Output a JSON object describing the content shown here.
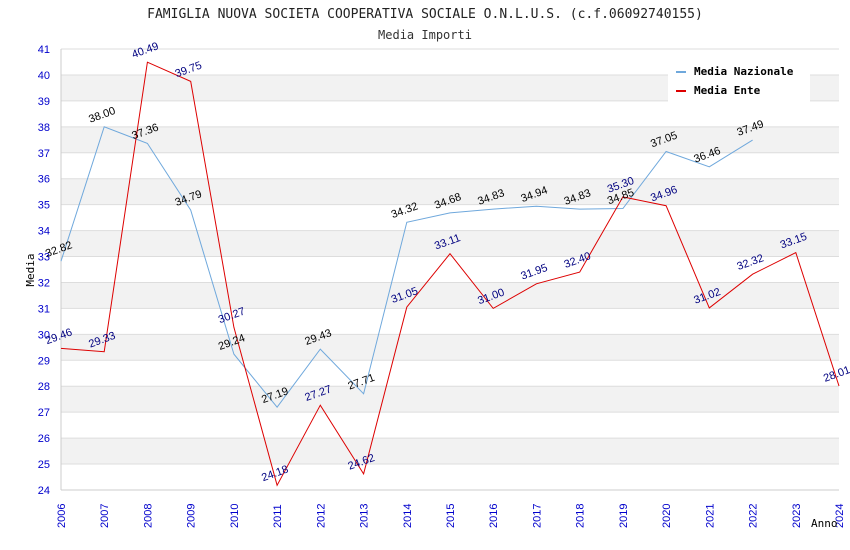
{
  "chart_data": {
    "type": "line",
    "title": "FAMIGLIA NUOVA SOCIETA COOPERATIVA SOCIALE O.N.L.U.S. (c.f.06092740155)",
    "subtitle": "Media Importi",
    "xlabel": "Anno",
    "ylabel": "Media",
    "ylim": [
      24,
      41
    ],
    "y_ticks": [
      "24",
      "25",
      "26",
      "27",
      "28",
      "29",
      "30",
      "31",
      "32",
      "33",
      "34",
      "35",
      "36",
      "37",
      "38",
      "39",
      "40",
      "41"
    ],
    "categories": [
      "2006",
      "2007",
      "2008",
      "2009",
      "2010",
      "2011",
      "2012",
      "2013",
      "2014",
      "2015",
      "2016",
      "2017",
      "2018",
      "2019",
      "2020",
      "2021",
      "2022",
      "2023",
      "2024"
    ],
    "grid": true,
    "legend_position": "top-right",
    "series": [
      {
        "name": "Media Nazionale",
        "color": "#6fa8dc",
        "label_color": "#000000",
        "values": [
          32.82,
          38.0,
          37.36,
          34.79,
          29.24,
          27.19,
          29.43,
          27.71,
          34.32,
          34.68,
          34.83,
          34.94,
          34.83,
          34.85,
          37.05,
          36.46,
          37.49,
          null,
          null
        ],
        "labels": [
          "32.82",
          "38.00",
          "37.36",
          "34.79",
          "29.24",
          "27.19",
          "29.43",
          "27.71",
          "34.32",
          "34.68",
          "34.83",
          "34.94",
          "34.83",
          "34.85",
          "37.05",
          "36.46",
          "37.49",
          null,
          null
        ]
      },
      {
        "name": "Media Ente",
        "color": "#dd0000",
        "label_color": "#000080",
        "values": [
          29.46,
          29.33,
          40.49,
          39.75,
          30.27,
          24.18,
          27.27,
          24.62,
          31.05,
          33.11,
          31.0,
          31.95,
          32.4,
          35.3,
          34.96,
          31.02,
          32.32,
          33.15,
          28.01
        ],
        "labels": [
          "29.46",
          "29.33",
          "40.49",
          "39.75",
          "30.27",
          "24.18",
          "27.27",
          "24.62",
          "31.05",
          "33.11",
          "31.00",
          "31.95",
          "32.40",
          "35.30",
          "34.96",
          "31.02",
          "32.32",
          "33.15",
          "28.01"
        ]
      }
    ]
  },
  "colors": {
    "tick_text": "#0000cc",
    "grid_band": "#f2f2f2",
    "grid_line": "#dddddd"
  }
}
